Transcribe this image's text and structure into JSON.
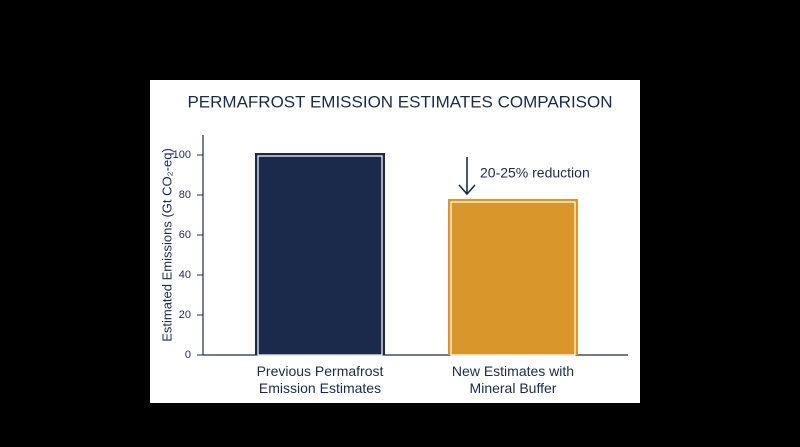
{
  "chart_data": {
    "type": "bar",
    "title": "PERMAFROST EMISSION ESTIMATES COMPARISON",
    "y_label": "Estimated Emissions (Gt CO₂-eq)",
    "categories": [
      "Previous Permafrost Emission Estimates",
      "New Estimates with Mineral Buffer"
    ],
    "values": [
      101,
      78
    ],
    "colors": [
      "#1b2a4a",
      "#d9962a"
    ],
    "annotation": "20-25% reduction",
    "ylim": [
      0,
      110
    ],
    "yticks": [
      0,
      20,
      40,
      60,
      80,
      100
    ],
    "grid": false
  }
}
